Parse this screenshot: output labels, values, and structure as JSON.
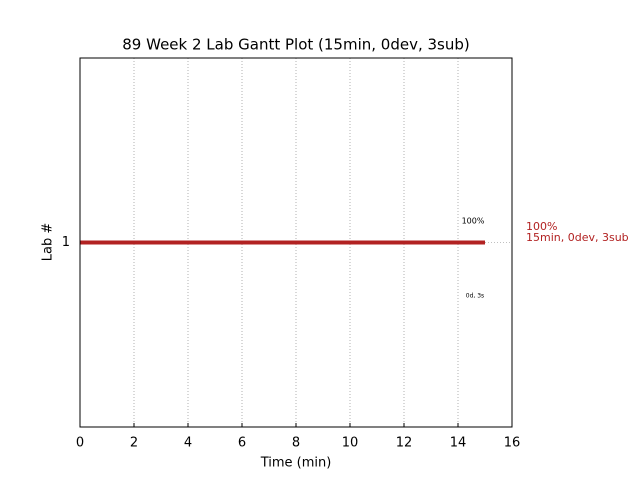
{
  "chart_data": {
    "type": "gantt",
    "title": "89 Week 2 Lab Gantt Plot (15min, 0dev, 3sub)",
    "x_label": "Time (min)",
    "y_label": "Lab #",
    "categories": [
      "1"
    ],
    "starts": [
      0
    ],
    "values": [
      15
    ],
    "color": "#b22222",
    "xlim": [
      0,
      16
    ],
    "xticks": [
      0,
      2,
      4,
      6,
      8,
      10,
      12,
      14,
      16
    ],
    "grid": true,
    "annotations": {
      "bar_top": "100%",
      "bar_bottom": "0d, 3s",
      "side_top": "100%",
      "side_bottom": "15min, 0dev, 3sub"
    }
  }
}
